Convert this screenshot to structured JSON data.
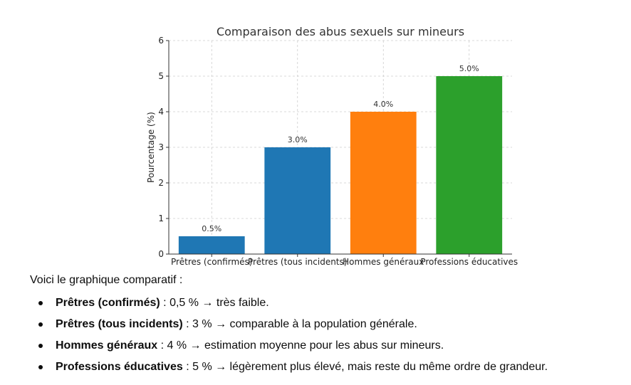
{
  "chart_data": {
    "type": "bar",
    "title": "Comparaison des abus sexuels sur mineurs",
    "xlabel": "",
    "ylabel": "Pourcentage (%)",
    "ylim": [
      0,
      6
    ],
    "yticks": [
      "0",
      "1",
      "2",
      "3",
      "4",
      "5",
      "6"
    ],
    "grid": true,
    "categories": [
      "Prêtres (confirmés)",
      "Prêtres (tous incidents)",
      "Hommes généraux",
      "Professions éducatives"
    ],
    "values": [
      0.5,
      3.0,
      4.0,
      5.0
    ],
    "data_labels": [
      "0.5%",
      "3.0%",
      "4.0%",
      "5.0%"
    ],
    "colors": [
      "#1f77b4",
      "#1f77b4",
      "#ff7f0e",
      "#2ca02c"
    ]
  },
  "summary": {
    "intro": "Voici le graphique comparatif :",
    "items": [
      {
        "term": "Prêtres (confirmés)",
        "sep": " : ",
        "text": "0,5 % → très faible."
      },
      {
        "term": "Prêtres (tous incidents)",
        "sep": " : ",
        "text": "3 % → comparable à la population générale."
      },
      {
        "term": "Hommes généraux",
        "sep": " : ",
        "text": "4 % → estimation moyenne pour les abus sur mineurs."
      },
      {
        "term": "Professions éducatives",
        "sep": " : ",
        "text": "5 % → légèrement plus élevé, mais reste du même ordre de grandeur."
      }
    ]
  }
}
